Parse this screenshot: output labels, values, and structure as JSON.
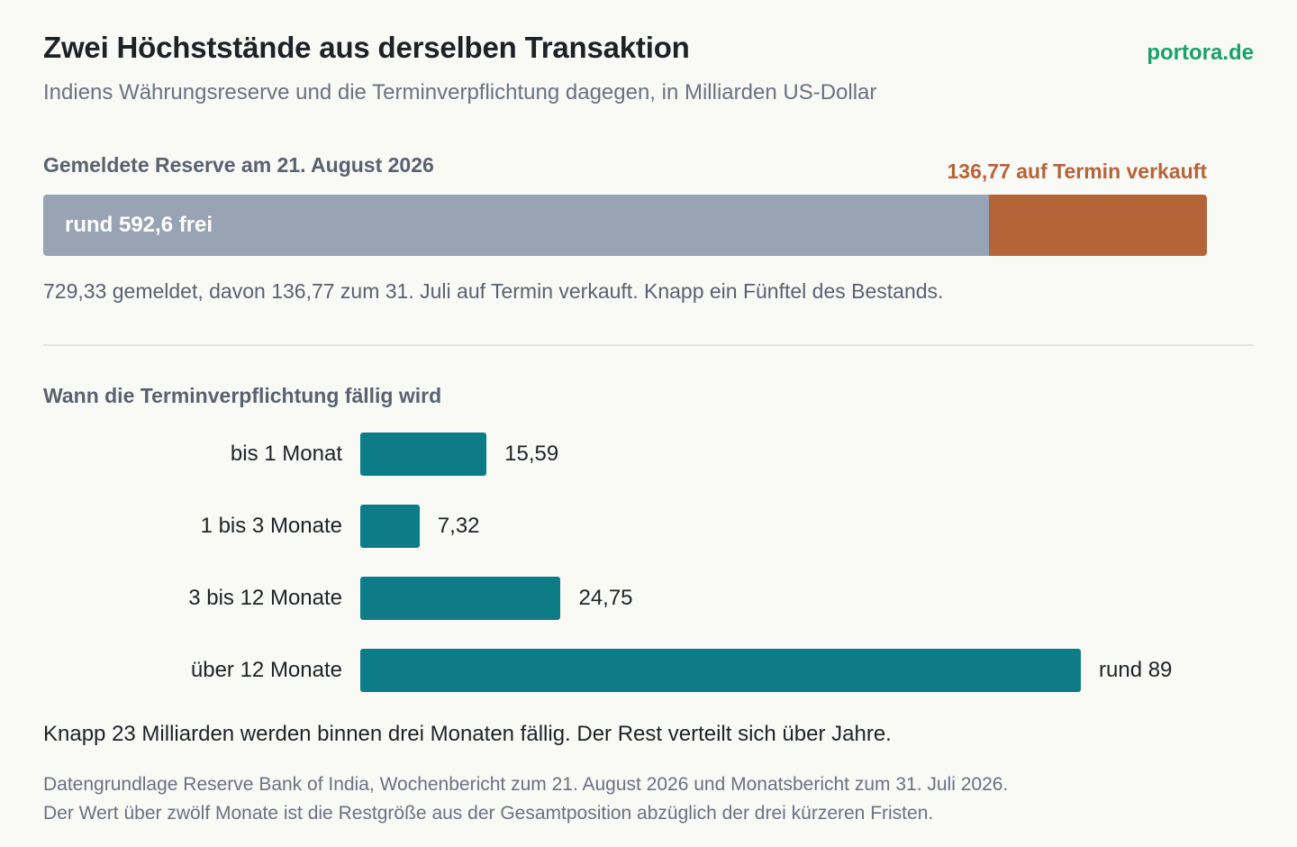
{
  "header": {
    "title": "Zwei Höchststände aus derselben Transaktion",
    "subtitle": "Indiens Währungsreserve und die Terminverpflichtung dagegen, in Milliarden US-Dollar",
    "brand": "portora.de"
  },
  "reserve": {
    "section_label": "Gemeldete Reserve am 21. August 2026",
    "free_label": "rund 592,6 frei",
    "forward_label": "136,77 auf Termin verkauft",
    "note": "729,33 gemeldet, davon 136,77 zum 31. Juli auf Termin verkauft. Knapp ein Fünftel des Bestands."
  },
  "maturity": {
    "section_label": "Wann die Terminverpflichtung fällig wird",
    "takeaway": "Knapp 23 Milliarden werden binnen drei Monaten fällig. Der Rest verteilt sich über Jahre."
  },
  "footer": {
    "source_line_1": "Datengrundlage Reserve Bank of India, Wochenbericht zum 21. August 2026 und Monatsbericht zum 31. Juli 2026.",
    "source_line_2": "Der Wert über zwölf Monate ist die Restgröße aus der Gesamtposition abzüglich der drei kürzeren Fristen."
  },
  "colors": {
    "free": "#98a3b3",
    "forward": "#b5643a",
    "maturity_bar": "#0e7c86",
    "brand": "#1aa06a"
  },
  "chart_data": [
    {
      "type": "bar",
      "orientation": "horizontal-stacked",
      "title": "Gemeldete Reserve am 21. August 2026",
      "total": 729.33,
      "segments": [
        {
          "label": "rund 592,6 frei",
          "value": 592.56
        },
        {
          "label": "136,77 auf Termin verkauft",
          "value": 136.77
        }
      ]
    },
    {
      "type": "bar",
      "orientation": "horizontal",
      "title": "Wann die Terminverpflichtung fällig wird",
      "categories": [
        "bis 1 Monat",
        "1 bis 3 Monate",
        "3 bis 12 Monate",
        "über 12 Monate"
      ],
      "values": [
        15.59,
        7.32,
        24.75,
        89
      ],
      "value_labels": [
        "15,59",
        "7,32",
        "24,75",
        "rund 89"
      ],
      "xlim": [
        0,
        89
      ]
    }
  ]
}
